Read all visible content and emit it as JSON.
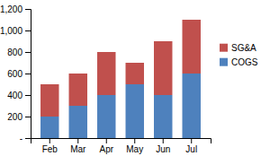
{
  "chart_data": {
    "type": "bar",
    "stacked": true,
    "categories": [
      "Feb",
      "Mar",
      "Apr",
      "May",
      "Jun",
      "Jul"
    ],
    "series": [
      {
        "name": "COGS",
        "color": "#4e81bd",
        "values": [
          200,
          300,
          400,
          500,
          400,
          600
        ]
      },
      {
        "name": "SG&A",
        "color": "#c0504d",
        "values": [
          300,
          300,
          400,
          200,
          500,
          500
        ]
      }
    ],
    "ylim": [
      0,
      1200
    ],
    "yticks": [
      {
        "value": 0,
        "label": "-"
      },
      200,
      400,
      600,
      800,
      {
        "value": 1000,
        "label": "1,000"
      },
      {
        "value": 1200,
        "label": "1,200"
      }
    ],
    "grid": false,
    "legend": "right"
  }
}
